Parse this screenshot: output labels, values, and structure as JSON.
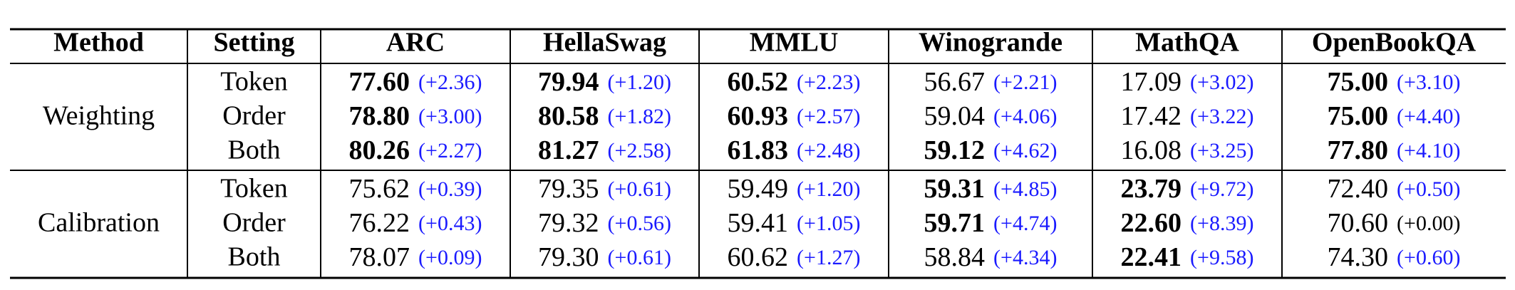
{
  "table": {
    "header": [
      "Method",
      "Setting",
      "ARC",
      "HellaSwag",
      "MMLU",
      "Winogrande",
      "MathQA",
      "OpenBookQA"
    ],
    "delta_color": "#1a1aff",
    "groups": [
      {
        "method": "Weighting",
        "rows": [
          {
            "setting": "Token",
            "cells": [
              {
                "value": "77.60",
                "delta": "(+2.36)",
                "bold": true
              },
              {
                "value": "79.94",
                "delta": "(+1.20)",
                "bold": true
              },
              {
                "value": "60.52",
                "delta": "(+2.23)",
                "bold": true
              },
              {
                "value": "56.67",
                "delta": "(+2.21)",
                "bold": false
              },
              {
                "value": "17.09",
                "delta": "(+3.02)",
                "bold": false
              },
              {
                "value": "75.00",
                "delta": "(+3.10)",
                "bold": true
              }
            ]
          },
          {
            "setting": "Order",
            "cells": [
              {
                "value": "78.80",
                "delta": "(+3.00)",
                "bold": true
              },
              {
                "value": "80.58",
                "delta": "(+1.82)",
                "bold": true
              },
              {
                "value": "60.93",
                "delta": "(+2.57)",
                "bold": true
              },
              {
                "value": "59.04",
                "delta": "(+4.06)",
                "bold": false
              },
              {
                "value": "17.42",
                "delta": "(+3.22)",
                "bold": false
              },
              {
                "value": "75.00",
                "delta": "(+4.40)",
                "bold": true
              }
            ]
          },
          {
            "setting": "Both",
            "cells": [
              {
                "value": "80.26",
                "delta": "(+2.27)",
                "bold": true
              },
              {
                "value": "81.27",
                "delta": "(+2.58)",
                "bold": true
              },
              {
                "value": "61.83",
                "delta": "(+2.48)",
                "bold": true
              },
              {
                "value": "59.12",
                "delta": "(+4.62)",
                "bold": true
              },
              {
                "value": "16.08",
                "delta": "(+3.25)",
                "bold": false
              },
              {
                "value": "77.80",
                "delta": "(+4.10)",
                "bold": true
              }
            ]
          }
        ]
      },
      {
        "method": "Calibration",
        "rows": [
          {
            "setting": "Token",
            "cells": [
              {
                "value": "75.62",
                "delta": "(+0.39)",
                "bold": false
              },
              {
                "value": "79.35",
                "delta": "(+0.61)",
                "bold": false
              },
              {
                "value": "59.49",
                "delta": "(+1.20)",
                "bold": false
              },
              {
                "value": "59.31",
                "delta": "(+4.85)",
                "bold": true
              },
              {
                "value": "23.79",
                "delta": "(+9.72)",
                "bold": true
              },
              {
                "value": "72.40",
                "delta": "(+0.50)",
                "bold": false
              }
            ]
          },
          {
            "setting": "Order",
            "cells": [
              {
                "value": "76.22",
                "delta": "(+0.43)",
                "bold": false
              },
              {
                "value": "79.32",
                "delta": "(+0.56)",
                "bold": false
              },
              {
                "value": "59.41",
                "delta": "(+1.05)",
                "bold": false
              },
              {
                "value": "59.71",
                "delta": "(+4.74)",
                "bold": true
              },
              {
                "value": "22.60",
                "delta": "(+8.39)",
                "bold": true
              },
              {
                "value": "70.60",
                "delta": "(+0.00)",
                "bold": false,
                "delta_color": "#000000"
              }
            ]
          },
          {
            "setting": "Both",
            "cells": [
              {
                "value": "78.07",
                "delta": "(+0.09)",
                "bold": false
              },
              {
                "value": "79.30",
                "delta": "(+0.61)",
                "bold": false
              },
              {
                "value": "60.62",
                "delta": "(+1.27)",
                "bold": false
              },
              {
                "value": "58.84",
                "delta": "(+4.34)",
                "bold": false
              },
              {
                "value": "22.41",
                "delta": "(+9.58)",
                "bold": true
              },
              {
                "value": "74.30",
                "delta": "(+0.60)",
                "bold": false
              }
            ]
          }
        ]
      }
    ]
  }
}
